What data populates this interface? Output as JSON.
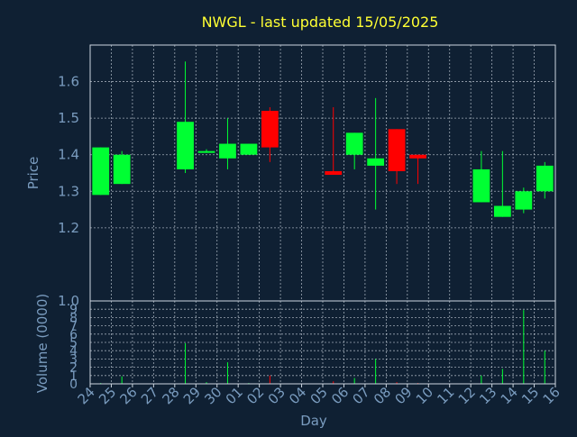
{
  "colors": {
    "background": "#0f2033",
    "axis": "#cdd6e0",
    "grid": "#cdd6e0",
    "text": "#7a9cbf",
    "title": "#ffff33",
    "up": "#00ff33",
    "down": "#ff0000"
  },
  "chart_data": {
    "type": "candlestick",
    "title": "NWGL - last updated 15/05/2025",
    "xlabel": "Day",
    "price_ylabel": "Price",
    "volume_ylabel": "Volume (0000)",
    "price_ylim": [
      1.0,
      1.7
    ],
    "price_ticks": [
      "1.0",
      "1.2",
      "1.3",
      "1.4",
      "1.5",
      "1.6"
    ],
    "price_tick_values": [
      1.0,
      1.2,
      1.3,
      1.4,
      1.5,
      1.6
    ],
    "volume_ylim": [
      0,
      10
    ],
    "volume_ticks": [
      "0",
      "1",
      "2",
      "3",
      "4",
      "5",
      "6",
      "7",
      "8",
      "9",
      "10"
    ],
    "volume_tick_values": [
      0,
      1,
      2,
      3,
      4,
      5,
      6,
      7,
      8,
      9,
      10
    ],
    "x_tick_labels": [
      "24",
      "25",
      "26",
      "27",
      "28",
      "29",
      "30",
      "01",
      "02",
      "03",
      "04",
      "05",
      "06",
      "07",
      "08",
      "09",
      "10",
      "11",
      "12",
      "13",
      "14",
      "15",
      "16"
    ],
    "grid": true,
    "candles": [
      {
        "day": 0,
        "open": 1.29,
        "high": 1.42,
        "low": 1.29,
        "close": 1.42,
        "volume": 0.1
      },
      {
        "day": 1,
        "open": 1.32,
        "high": 1.41,
        "low": 1.32,
        "close": 1.4,
        "volume": 0.9
      },
      {
        "day": 4,
        "open": 1.36,
        "high": 1.655,
        "low": 1.35,
        "close": 1.49,
        "volume": 4.9
      },
      {
        "day": 5,
        "open": 1.405,
        "high": 1.415,
        "low": 1.405,
        "close": 1.41,
        "volume": 0.2
      },
      {
        "day": 6,
        "open": 1.39,
        "high": 1.5,
        "low": 1.36,
        "close": 1.43,
        "volume": 2.6
      },
      {
        "day": 7,
        "open": 1.4,
        "high": 1.43,
        "low": 1.4,
        "close": 1.43,
        "volume": 0.1
      },
      {
        "day": 8,
        "open": 1.52,
        "high": 1.53,
        "low": 1.38,
        "close": 1.42,
        "volume": 1.0
      },
      {
        "day": 11,
        "open": 1.355,
        "high": 1.53,
        "low": 1.345,
        "close": 1.345,
        "volume": 0.3
      },
      {
        "day": 12,
        "open": 1.4,
        "high": 1.46,
        "low": 1.36,
        "close": 1.46,
        "volume": 0.7
      },
      {
        "day": 13,
        "open": 1.37,
        "high": 1.555,
        "low": 1.25,
        "close": 1.39,
        "volume": 3.0
      },
      {
        "day": 14,
        "open": 1.47,
        "high": 1.47,
        "low": 1.32,
        "close": 1.355,
        "volume": 0.2
      },
      {
        "day": 15,
        "open": 1.4,
        "high": 1.4,
        "low": 1.32,
        "close": 1.39,
        "volume": 0.1
      },
      {
        "day": 18,
        "open": 1.27,
        "high": 1.41,
        "low": 1.27,
        "close": 1.36,
        "volume": 1.0
      },
      {
        "day": 19,
        "open": 1.23,
        "high": 1.41,
        "low": 1.23,
        "close": 1.26,
        "volume": 1.8
      },
      {
        "day": 20,
        "open": 1.25,
        "high": 1.31,
        "low": 1.24,
        "close": 1.3,
        "volume": 8.9
      },
      {
        "day": 21,
        "open": 1.3,
        "high": 1.38,
        "low": 1.28,
        "close": 1.37,
        "volume": 4.0
      }
    ]
  }
}
